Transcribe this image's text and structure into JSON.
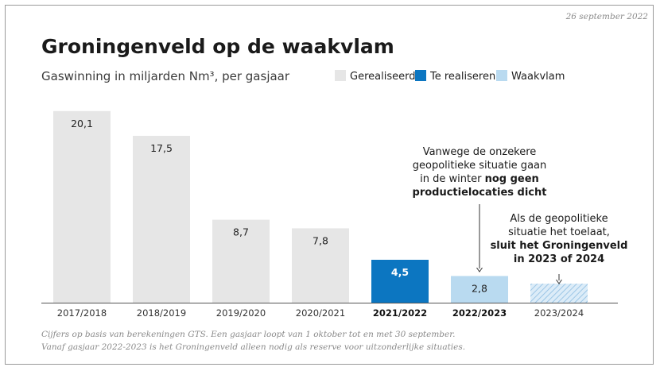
{
  "date": "26 september 2022",
  "colors": {
    "gerealiseerd": "#e6e6e6",
    "te_realiseren": "#0c76c1",
    "waakvlam": "#b9daf0",
    "waakvlam_hatch": "#9cc6e6",
    "axis": "#555555"
  },
  "chart_data": {
    "type": "bar",
    "title": "Groningenveld op de waakvlam",
    "subtitle": "Gaswinning in miljarden Nm³, per gasjaar",
    "categories": [
      "2017/2018",
      "2018/2019",
      "2019/2020",
      "2020/2021",
      "2021/2022",
      "2022/2023",
      "2023/2024"
    ],
    "values": [
      20.1,
      17.5,
      8.7,
      7.8,
      4.5,
      2.8,
      2.0
    ],
    "value_labels": [
      "20,1",
      "17,5",
      "8,7",
      "7,8",
      "4,5",
      "2,8",
      ""
    ],
    "bar_types": [
      "gerealiseerd",
      "gerealiseerd",
      "gerealiseerd",
      "gerealiseerd",
      "te_realiseren",
      "waakvlam",
      "waakvlam_hatched"
    ],
    "bold_categories": [
      "2021/2022",
      "2022/2023"
    ],
    "ylim": [
      0,
      22
    ],
    "legend": [
      {
        "key": "gerealiseerd",
        "label": "Gerealiseerd"
      },
      {
        "key": "te_realiseren",
        "label": "Te realiseren"
      },
      {
        "key": "waakvlam",
        "label": "Waakvlam"
      }
    ],
    "legend_position": "top-right",
    "grid": false,
    "annotations": [
      {
        "category": "2022/2023",
        "lines": [
          [
            {
              "text": "Vanwege de onzekere",
              "bold": false
            }
          ],
          [
            {
              "text": "geopolitieke situatie gaan",
              "bold": false
            }
          ],
          [
            {
              "text": "in de winter ",
              "bold": false
            },
            {
              "text": "nog geen",
              "bold": true
            }
          ],
          [
            {
              "text": "productielocaties dicht",
              "bold": true
            }
          ]
        ]
      },
      {
        "category": "2023/2024",
        "lines": [
          [
            {
              "text": "Als de geopolitieke",
              "bold": false
            }
          ],
          [
            {
              "text": "situatie het toelaat,",
              "bold": false
            }
          ],
          [
            {
              "text": "sluit het Groningenveld",
              "bold": true
            }
          ],
          [
            {
              "text": "in 2023 of 2024",
              "bold": true
            }
          ]
        ]
      }
    ]
  },
  "footnote": {
    "line1": "Cijfers op basis van berekeningen GTS. Een gasjaar loopt van 1 oktober tot en met 30 september.",
    "line2": "Vanaf gasjaar 2022-2023 is het Groningenveld alleen nodig als reserve voor uitzonderlijke situaties."
  }
}
